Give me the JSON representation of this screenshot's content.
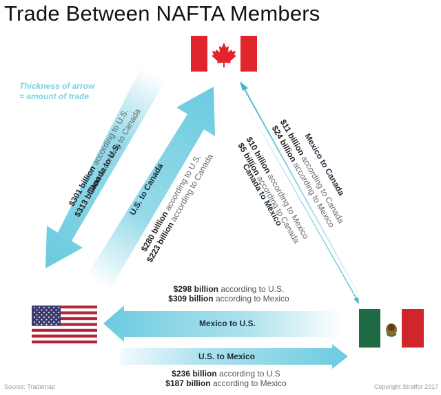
{
  "title": "Trade Between NAFTA Members",
  "legend": {
    "line1": "Thickness of arrow",
    "line2": "= amount of trade"
  },
  "source": "Source: Trademap",
  "copyright": "Copyright Stratfor 2017",
  "colors": {
    "arrow": "#6ccbe0",
    "arrow_dark": "#3fb6d0",
    "legend": "#7ed0e2",
    "canada_red": "#e0252c",
    "mexico_green": "#1e6b45",
    "mexico_red": "#d0252b",
    "us_red": "#b8233a",
    "us_blue": "#3b3b6d"
  },
  "flags": {
    "canada": "canada-flag",
    "usa": "usa-flag",
    "mexico": "mexico-flag"
  },
  "flows": {
    "canada_to_us": {
      "label": "Canada to U.S.",
      "line1_value": "$301 billion",
      "line1_rest": " according to U.S.",
      "line2_value": "$313 billion",
      "line2_rest": " according to Canada"
    },
    "us_to_canada": {
      "label": "U.S. to Canada",
      "line1_value": "$280 billion",
      "line1_rest": " according to U.S.",
      "line2_value": "$223 billion",
      "line2_rest": " according to Canada"
    },
    "mexico_to_canada": {
      "label": "Mexico to Canada",
      "line1_value": "$11 billion",
      "line1_rest": " according to Canada",
      "line2_value": "$24 billion",
      "line2_rest": " according to Mexico"
    },
    "canada_to_mexico": {
      "label": "Canada to Mexico",
      "line1_value": "$10 billion",
      "line1_rest": " according to Mexico",
      "line2_value": "$5 billion",
      "line2_rest": " according to Canada"
    },
    "mexico_to_us": {
      "label": "Mexico to U.S.",
      "line1_value": "$298 billion",
      "line1_rest": " according to U.S.",
      "line2_value": "$309 billion",
      "line2_rest": " according to Mexico"
    },
    "us_to_mexico": {
      "label": "U.S. to Mexico",
      "line1_value": "$236 billion",
      "line1_rest": " according to U.S",
      "line2_value": "$187 billion",
      "line2_rest": " according to Mexico"
    }
  }
}
